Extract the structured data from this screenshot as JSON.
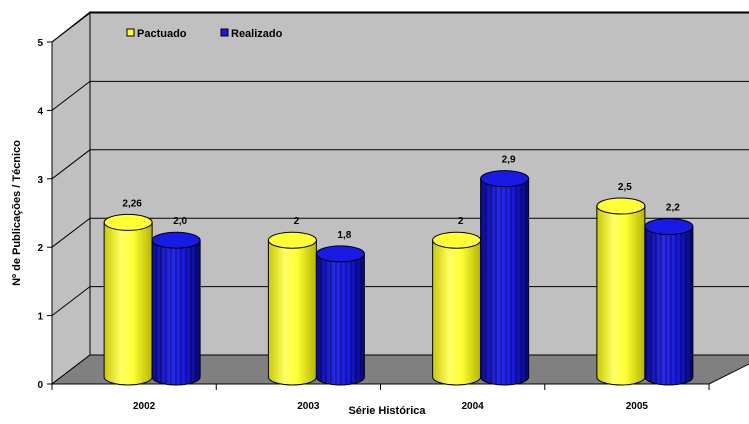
{
  "chart_data": {
    "type": "bar",
    "style": "3d-cylinder",
    "categories": [
      "2002",
      "2003",
      "2004",
      "2005"
    ],
    "series": [
      {
        "name": "Pactuado",
        "values": [
          2.26,
          2,
          2,
          2.5
        ],
        "labels": [
          "2,26",
          "2",
          "2",
          "2,5"
        ],
        "color": "#FFFF33"
      },
      {
        "name": "Realizado",
        "values": [
          2.0,
          1.8,
          2.9,
          2.2
        ],
        "labels": [
          "2,0",
          "1,8",
          "2,9",
          "2,2"
        ],
        "color": "#1A1AE6"
      }
    ],
    "xlabel": "Série Histórica",
    "ylabel": "Nº de Publicações / Técnico",
    "ylim": [
      0,
      5
    ],
    "yticks": [
      "0",
      "1",
      "2",
      "3",
      "4",
      "5"
    ],
    "grid": true,
    "legend_position": "top-left",
    "colors": {
      "wall": "#C0C0C0",
      "floor": "#808080",
      "gridline": "#000000"
    }
  }
}
